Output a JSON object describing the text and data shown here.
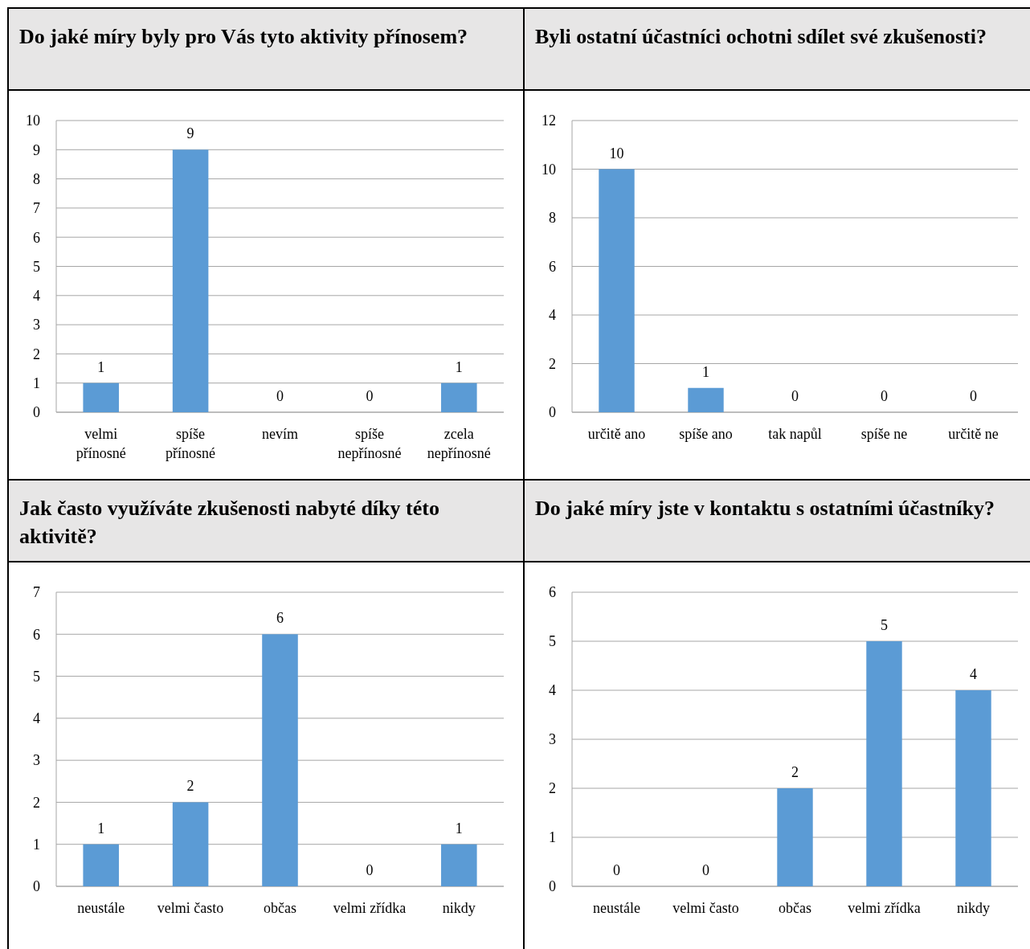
{
  "chart_data": [
    {
      "type": "bar",
      "title": "Do jaké míry byly pro Vás tyto aktivity přínosem?",
      "categories": [
        "velmi přínosné",
        "spíše přínosné",
        "nevím",
        "spíše nepřínosné",
        "zcela nepřínosné"
      ],
      "values": [
        1,
        9,
        0,
        0,
        1
      ],
      "color": "#5b9bd5",
      "ylim": [
        0,
        10
      ],
      "yticks": [
        0,
        1,
        2,
        3,
        4,
        5,
        6,
        7,
        8,
        9,
        10
      ],
      "grid": "y",
      "data_labels": true
    },
    {
      "type": "bar",
      "title": "Byli ostatní účastníci ochotni sdílet své zkušenosti?",
      "categories": [
        "určitě ano",
        "spíše ano",
        "tak napůl",
        "spíše ne",
        "určitě ne"
      ],
      "values": [
        10,
        1,
        0,
        0,
        0
      ],
      "color": "#5b9bd5",
      "ylim": [
        0,
        12
      ],
      "yticks": [
        0,
        2,
        4,
        6,
        8,
        10,
        12
      ],
      "grid": "y",
      "data_labels": true
    },
    {
      "type": "bar",
      "title": "Jak často využíváte zkušenosti nabyté díky této aktivitě?",
      "categories": [
        "neustále",
        "velmi často",
        "občas",
        "velmi zřídka",
        "nikdy"
      ],
      "values": [
        1,
        2,
        6,
        0,
        1
      ],
      "color": "#5b9bd5",
      "ylim": [
        0,
        7
      ],
      "yticks": [
        0,
        1,
        2,
        3,
        4,
        5,
        6,
        7
      ],
      "grid": "y",
      "data_labels": true
    },
    {
      "type": "bar",
      "title": "Do jaké míry jste v kontaktu s ostatními účastníky?",
      "categories": [
        "neustále",
        "velmi často",
        "občas",
        "velmi zřídka",
        "nikdy"
      ],
      "values": [
        0,
        0,
        2,
        5,
        4
      ],
      "color": "#5b9bd5",
      "ylim": [
        0,
        6
      ],
      "yticks": [
        0,
        1,
        2,
        3,
        4,
        5,
        6
      ],
      "grid": "y",
      "data_labels": true
    }
  ]
}
